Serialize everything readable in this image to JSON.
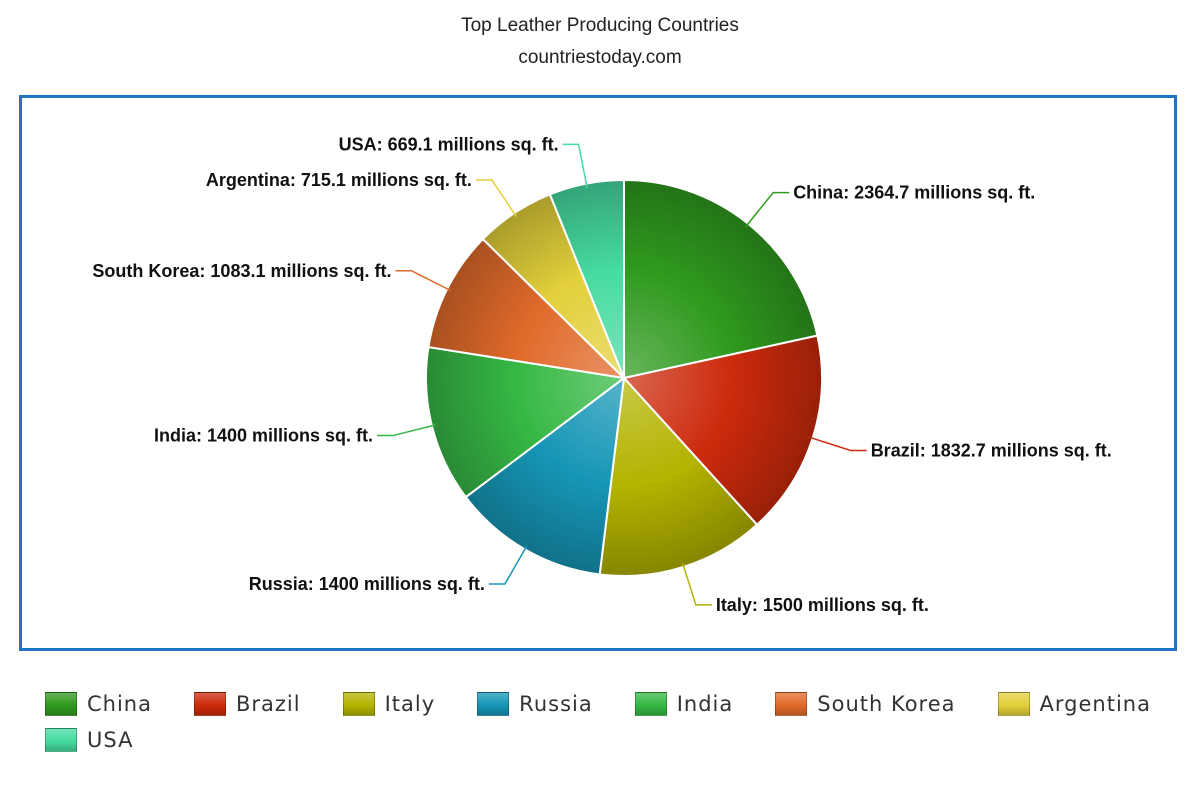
{
  "chart_data": {
    "type": "pie",
    "title": "Top Leather Producing Countries",
    "subtitle": "countriestoday.com",
    "unit": "millions sq. ft.",
    "slices": [
      {
        "name": "China",
        "value": 2364.7,
        "label": "China: 2364.7 millions sq. ft.",
        "color": "#2f9a1e"
      },
      {
        "name": "Brazil",
        "value": 1832.7,
        "label": "Brazil: 1832.7 millions sq. ft.",
        "color": "#cc2a0c"
      },
      {
        "name": "Italy",
        "value": 1500,
        "label": "Italy: 1500 millions sq. ft.",
        "color": "#b3b300"
      },
      {
        "name": "Russia",
        "value": 1400,
        "label": "Russia: 1400 millions sq. ft.",
        "color": "#1696b6"
      },
      {
        "name": "India",
        "value": 1400,
        "label": "India: 1400 millions sq. ft.",
        "color": "#36b845"
      },
      {
        "name": "South Korea",
        "value": 1083.1,
        "label": "South Korea: 1083.1 millions sq. ft.",
        "color": "#e06a2a"
      },
      {
        "name": "Argentina",
        "value": 715.1,
        "label": "Argentina: 715.1 millions sq. ft.",
        "color": "#e3d03b"
      },
      {
        "name": "USA",
        "value": 669.1,
        "label": "USA: 669.1 millions sq. ft.",
        "color": "#46dba0"
      }
    ],
    "legend_position": "bottom"
  }
}
